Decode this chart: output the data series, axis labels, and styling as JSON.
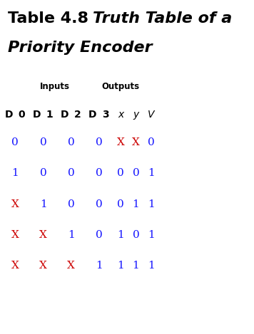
{
  "bg_color": "#ffffff",
  "title_normal": "Table 4.8 ",
  "title_italic": "Truth Table of a",
  "title_line2": "Priority Encoder",
  "inputs_label": "Inputs",
  "outputs_label": "Outputs",
  "col_headers": [
    "D",
    "0",
    "D",
    "1",
    "D",
    "2",
    "D",
    "3",
    "x",
    "y",
    "V"
  ],
  "col_header_styles": [
    "bold",
    "bold",
    "bold",
    "bold",
    "bold",
    "bold",
    "bold",
    "bold",
    "italic",
    "italic",
    "italic"
  ],
  "rows": [
    [
      "0",
      "0",
      "0",
      "0",
      "X",
      "X",
      "0"
    ],
    [
      "1",
      "0",
      "0",
      "0",
      "0",
      "0",
      "1"
    ],
    [
      "X",
      "1",
      "0",
      "0",
      "0",
      "1",
      "1"
    ],
    [
      "X",
      "X",
      "1",
      "0",
      "1",
      "0",
      "1"
    ],
    [
      "X",
      "X",
      "X",
      "1",
      "1",
      "1",
      "1"
    ]
  ],
  "row_colors": [
    [
      "blue",
      "blue",
      "blue",
      "blue",
      "red",
      "red",
      "blue"
    ],
    [
      "blue",
      "blue",
      "blue",
      "blue",
      "blue",
      "blue",
      "blue"
    ],
    [
      "red",
      "blue",
      "blue",
      "blue",
      "blue",
      "blue",
      "blue"
    ],
    [
      "red",
      "red",
      "blue",
      "blue",
      "blue",
      "blue",
      "blue"
    ],
    [
      "red",
      "red",
      "red",
      "blue",
      "blue",
      "blue",
      "blue"
    ]
  ],
  "color_map": {
    "blue": "#1515ff",
    "red": "#cc0000",
    "black": "#000000"
  },
  "title_fontsize": 16,
  "header_label_fontsize": 8.5,
  "col_header_fontsize": 10,
  "data_fontsize": 11,
  "figsize": [
    3.56,
    4.69
  ],
  "dpi": 100
}
